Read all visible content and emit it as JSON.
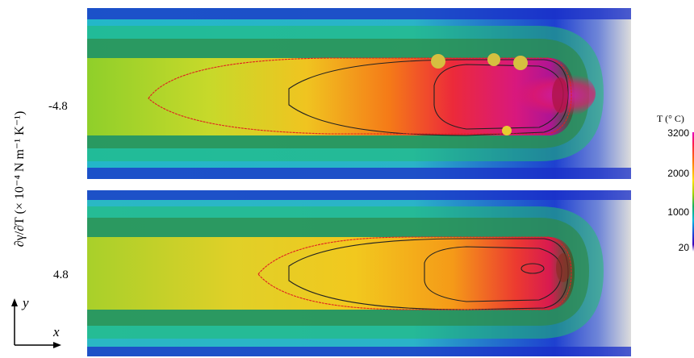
{
  "rows": [
    {
      "value_label": "-4.8"
    },
    {
      "value_label": "4.8"
    }
  ],
  "y_axis_label": "∂γ/∂T (× 10⁻⁴ N m⁻¹ K⁻¹)",
  "colorbar": {
    "title": "T (° C)",
    "ticks": [
      "3200",
      "2000",
      "1000",
      "20"
    ],
    "colors": [
      "#e600c0",
      "#ff1e4a",
      "#ff7a00",
      "#ffe000",
      "#9cd000",
      "#18b060",
      "#00b8e0",
      "#1f3cd8",
      "#3a00b8",
      "#ffffff"
    ]
  },
  "axes_icon": {
    "y": "y",
    "x": "x"
  }
}
